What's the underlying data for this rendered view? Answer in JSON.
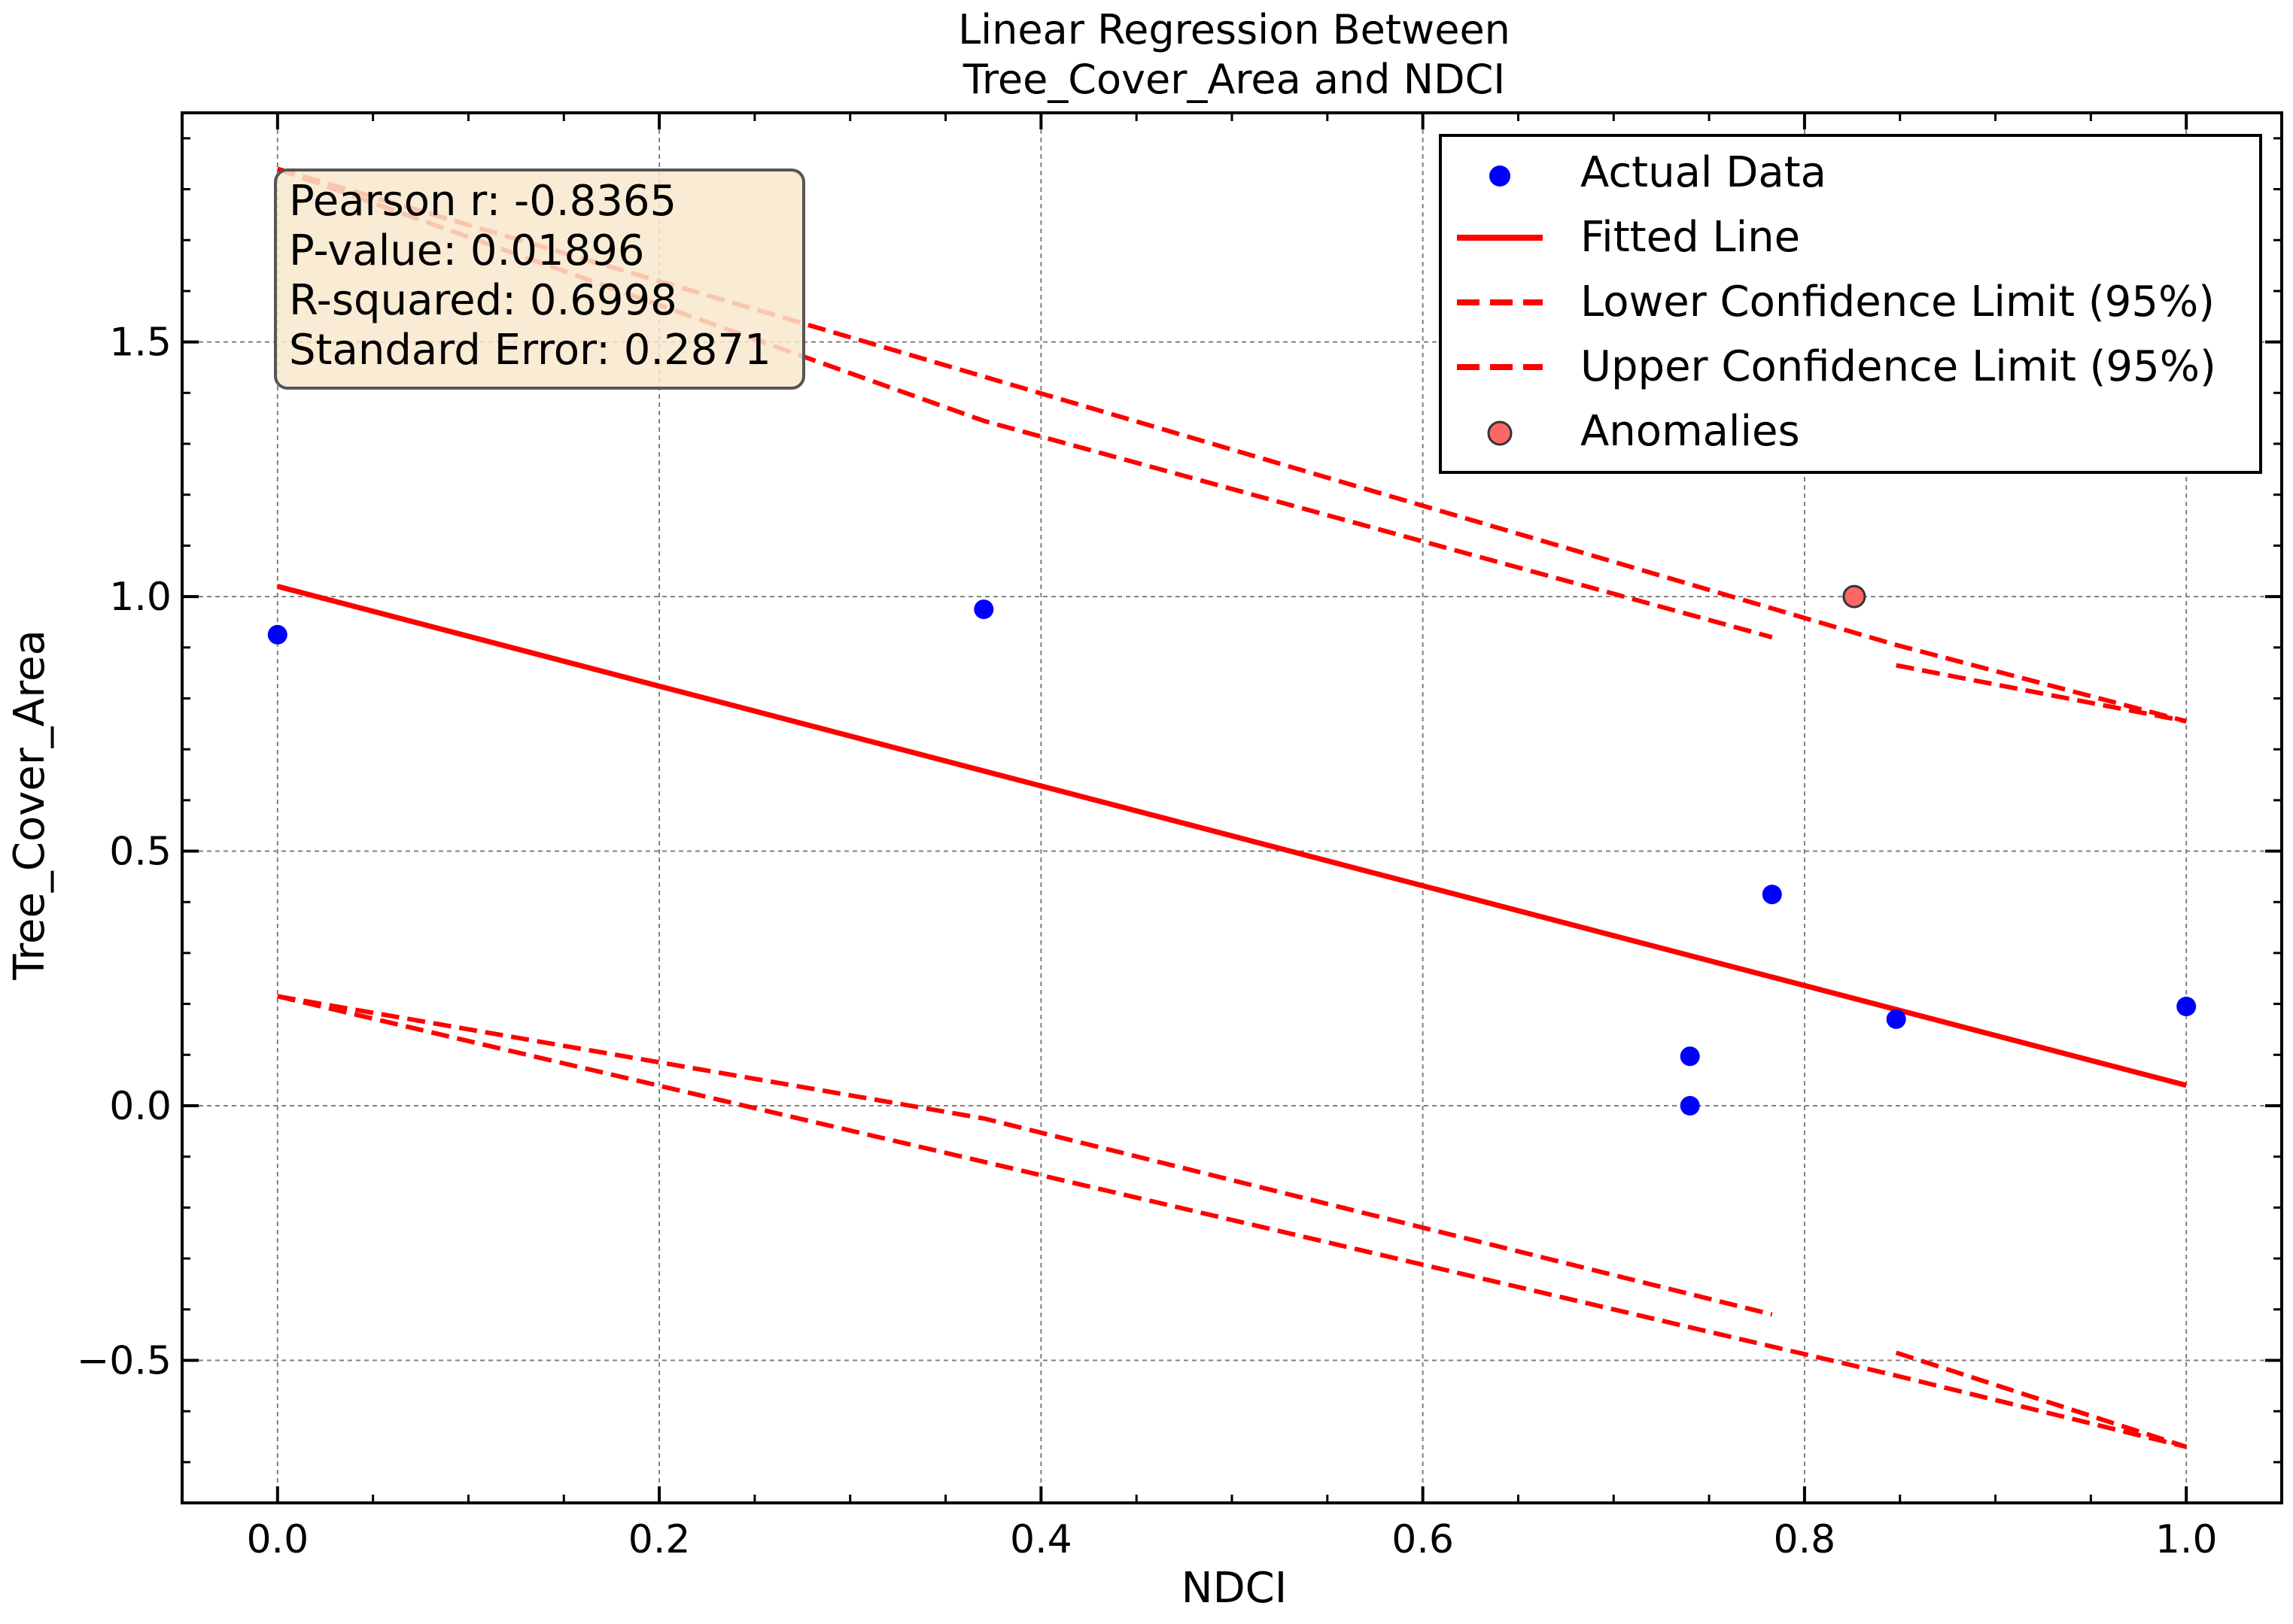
{
  "chart_data": {
    "type": "scatter",
    "title": [
      "Linear Regression Between",
      "Tree_Cover_Area and NDCI"
    ],
    "xlabel": "NDCI",
    "ylabel": "Tree_Cover_Area",
    "xlim": [
      -0.05,
      1.05
    ],
    "ylim": [
      -0.78,
      1.95
    ],
    "xticks": [
      0.0,
      0.2,
      0.4,
      0.6,
      0.8,
      1.0
    ],
    "xtick_labels": [
      "0.0",
      "0.2",
      "0.4",
      "0.6",
      "0.8",
      "1.0"
    ],
    "yticks": [
      -0.5,
      0.0,
      0.5,
      1.0,
      1.5
    ],
    "ytick_labels": [
      "−0.5",
      "0.0",
      "0.5",
      "1.0",
      "1.5"
    ],
    "grid": true,
    "legend_position": "top-right",
    "series": [
      {
        "name": "Actual Data",
        "kind": "scatter",
        "color": "#0000ff",
        "points": [
          [
            0.0,
            0.925
          ],
          [
            0.37,
            0.975
          ],
          [
            0.74,
            0.097
          ],
          [
            0.74,
            0.0
          ],
          [
            0.783,
            0.415
          ],
          [
            0.848,
            0.17
          ],
          [
            1.0,
            0.195
          ]
        ]
      },
      {
        "name": "Fitted Line",
        "kind": "line",
        "color": "#ff0000",
        "points": [
          [
            0.0,
            1.02
          ],
          [
            1.0,
            0.04
          ]
        ]
      },
      {
        "name": "Lower Confidence Limit (95%)",
        "kind": "dashed",
        "color": "#ff0000",
        "segments": [
          [
            [
              0.0,
              1.84
            ],
            [
              0.37,
              1.345
            ],
            [
              0.783,
              0.92
            ]
          ],
          [
            [
              0.848,
              0.865
            ],
            [
              1.0,
              0.755
            ]
          ],
          [
            [
              0.0,
              0.215
            ],
            [
              0.37,
              -0.025
            ],
            [
              0.783,
              -0.41
            ]
          ],
          [
            [
              0.848,
              -0.485
            ],
            [
              1.0,
              -0.67
            ]
          ]
        ]
      },
      {
        "name": "Upper Confidence Limit (95%)",
        "kind": "dashed",
        "color": "#ff0000",
        "segments": [
          [
            [
              0.0,
              1.84
            ],
            [
              0.848,
              0.905
            ],
            [
              1.0,
              0.755
            ]
          ],
          [
            [
              0.0,
              0.215
            ],
            [
              0.848,
              -0.53
            ],
            [
              1.0,
              -0.67
            ]
          ]
        ]
      },
      {
        "name": "Anomalies",
        "kind": "scatter",
        "color": "#ff6666",
        "edge": "#333333",
        "points": [
          [
            0.826,
            1.0
          ]
        ]
      }
    ],
    "annotation": {
      "lines": [
        "Pearson r: -0.8365",
        "P-value: 0.01896",
        "R-squared: 0.6998",
        "Standard Error: 0.2871"
      ],
      "background": "#f8e8cc",
      "border": "#555555"
    }
  }
}
